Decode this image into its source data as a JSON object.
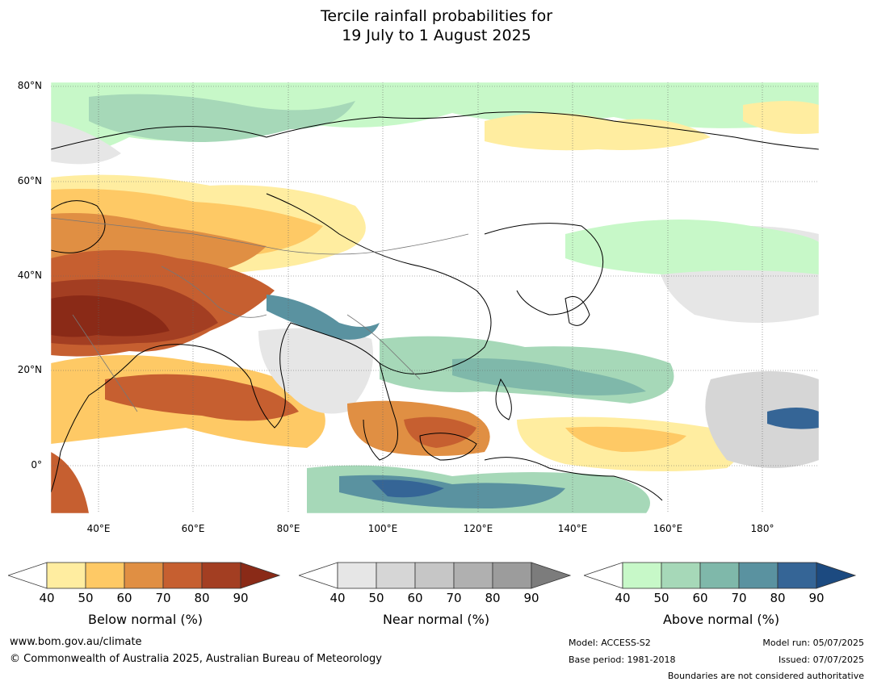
{
  "title": {
    "line1": "Tercile rainfall probabilities for",
    "line2": "19 July to 1 August 2025"
  },
  "map": {
    "lat_labels": [
      "80°N",
      "60°N",
      "40°N",
      "20°N",
      "0°"
    ],
    "lon_labels": [
      "40°E",
      "60°E",
      "80°E",
      "100°E",
      "120°E",
      "140°E",
      "160°E",
      "180°"
    ],
    "lat_range": [
      -10,
      82
    ],
    "lon_range": [
      30,
      192
    ],
    "colors": {
      "below": [
        "#ffeda0",
        "#fec965",
        "#e08f43",
        "#c65f30",
        "#a33e22",
        "#8a2a17"
      ],
      "near": [
        "#e6e6e6",
        "#d6d6d6",
        "#c6c6c6",
        "#b0b0b0",
        "#9c9c9c",
        "#7c7c7c"
      ],
      "above": [
        "#c7f8c8",
        "#a6d8b8",
        "#7fb8aa",
        "#5a92a0",
        "#356596",
        "#1c4a80"
      ]
    }
  },
  "colorbars": [
    {
      "id": "below",
      "label": "Below normal (%)",
      "ticks": [
        "40",
        "50",
        "60",
        "70",
        "80",
        "90"
      ]
    },
    {
      "id": "near",
      "label": "Near normal (%)",
      "ticks": [
        "40",
        "50",
        "60",
        "70",
        "80",
        "90"
      ]
    },
    {
      "id": "above",
      "label": "Above normal (%)",
      "ticks": [
        "40",
        "50",
        "60",
        "70",
        "80",
        "90"
      ]
    }
  ],
  "footer": {
    "website": "www.bom.gov.au/climate",
    "copyright": "© Commonwealth of Australia 2025, Australian Bureau of Meteorology",
    "model": "Model: ACCESS-S2",
    "base_period": "Base period: 1981-2018",
    "model_run": "Model run: 05/07/2025",
    "issued": "Issued: 07/07/2025",
    "boundaries": "Boundaries are not considered authoritative"
  }
}
